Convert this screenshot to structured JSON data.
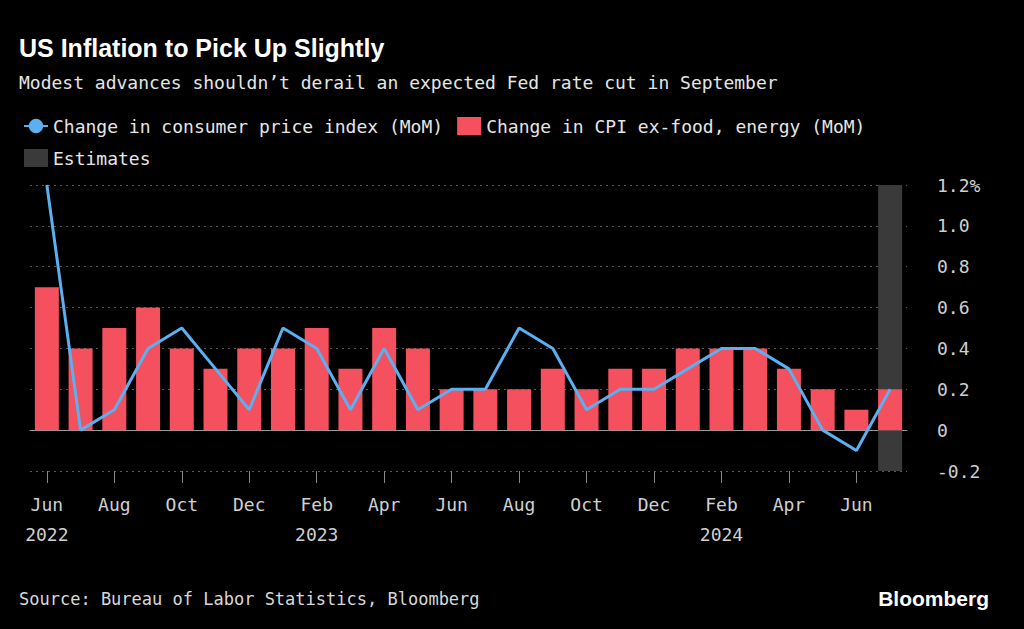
{
  "chart_data": {
    "type": "bar",
    "title": "US Inflation to Pick Up Slightly",
    "subtitle": "Modest advances shouldn’t derail an expected Fed rate cut in September",
    "categories": [
      "Jun\n2022",
      null,
      "Aug",
      null,
      "Oct",
      null,
      "Dec",
      null,
      "Feb\n2023",
      null,
      "Apr",
      null,
      "Jun",
      null,
      "Aug",
      null,
      "Oct",
      null,
      "Dec",
      null,
      "Feb\n2024",
      null,
      "Apr",
      null,
      "Jun",
      null
    ],
    "series": [
      {
        "name": "Change in consumer price index (MoM)",
        "type": "line",
        "color": "#5ab0f0",
        "values": [
          1.2,
          0.0,
          0.1,
          0.4,
          0.5,
          0.3,
          0.1,
          0.5,
          0.4,
          0.1,
          0.4,
          0.1,
          0.2,
          0.2,
          0.5,
          0.4,
          0.1,
          0.2,
          0.2,
          0.3,
          0.4,
          0.4,
          0.3,
          0.0,
          -0.1,
          0.2
        ]
      },
      {
        "name": "Change in CPI ex-food, energy (MoM)",
        "type": "bar",
        "color": "#f4505e",
        "values": [
          0.7,
          0.4,
          0.5,
          0.6,
          0.4,
          0.3,
          0.4,
          0.4,
          0.5,
          0.3,
          0.5,
          0.4,
          0.2,
          0.2,
          0.2,
          0.3,
          0.2,
          0.3,
          0.3,
          0.4,
          0.4,
          0.4,
          0.3,
          0.2,
          0.1,
          0.2
        ]
      }
    ],
    "estimates": {
      "name": "Estimates",
      "color": "#3a3a3a",
      "category_index": 25
    },
    "ylim": [
      -0.2,
      1.2
    ],
    "yticks": [
      -0.2,
      0,
      0.2,
      0.4,
      0.6,
      0.8,
      {
        "value": 1,
        "label": "1.0"
      },
      {
        "value": 1.2,
        "label": "1.2%"
      }
    ],
    "grid": true,
    "source": "Source: Bureau of Labor Statistics, Bloomberg",
    "brand": "Bloomberg"
  }
}
